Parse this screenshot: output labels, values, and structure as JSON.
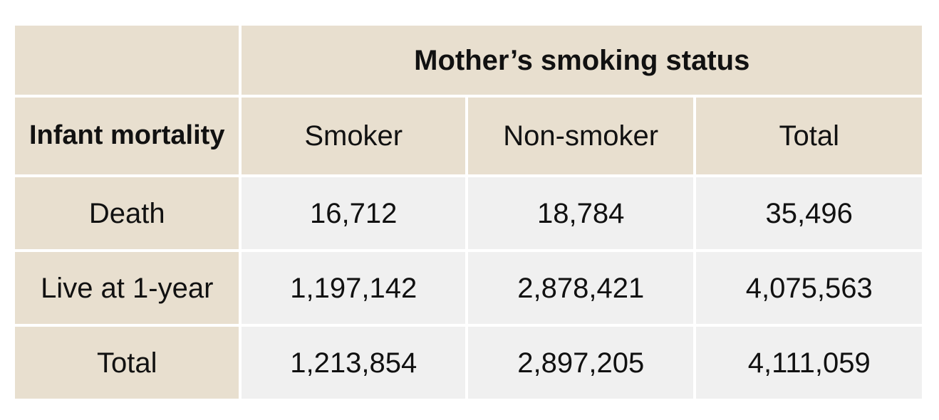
{
  "table": {
    "column_group_header": "Mother’s smoking status",
    "stub_header": "Infant mortality",
    "columns": [
      "Smoker",
      "Non-smoker",
      "Total"
    ],
    "rows": [
      {
        "label": "Death",
        "values": [
          "16,712",
          "18,784",
          "35,496"
        ]
      },
      {
        "label": "Live at 1-year",
        "values": [
          "1,197,142",
          "2,878,421",
          "4,075,563"
        ]
      },
      {
        "label": "Total",
        "values": [
          "1,213,854",
          "2,897,205",
          "4,111,059"
        ]
      }
    ]
  },
  "colors": {
    "header_bg": "#e8dfcf",
    "body_bg": "#f0f0f0",
    "text": "#111111"
  }
}
